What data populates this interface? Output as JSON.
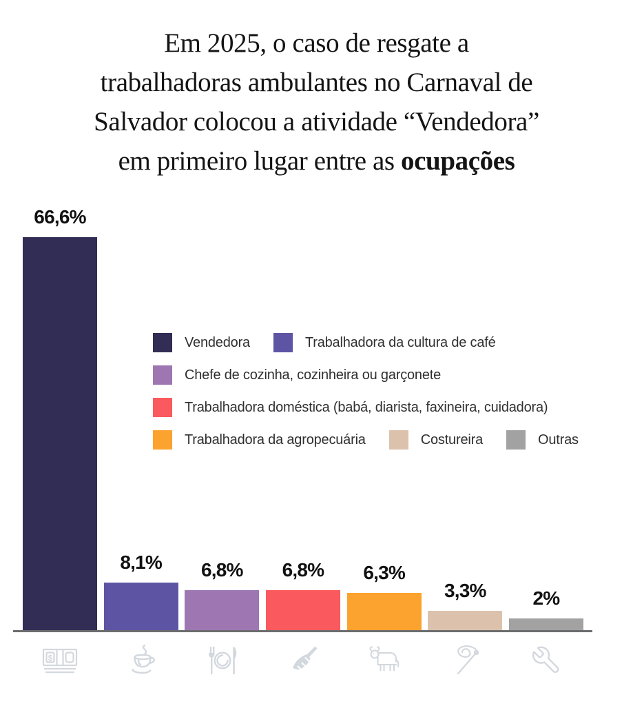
{
  "title": {
    "line1": "Em 2025, o caso de resgate a",
    "line2": "trabalhadoras ambulantes no Carnaval de",
    "line3": "Salvador colocou a atividade “Vendedora”",
    "line4_prefix": "em primeiro lugar entre as ",
    "line4_bold": "ocupações"
  },
  "chart_data": {
    "type": "bar",
    "unit": "%",
    "categories": [
      "Vendedora",
      "Trabalhadora da cultura de café",
      "Chefe de cozinha, cozinheira ou garçonete",
      "Trabalhadora doméstica (babá, diarista, faxineira, cuidadora)",
      "Trabalhadora da agropecuária",
      "Costureira",
      "Outras"
    ],
    "values": [
      66.6,
      8.1,
      6.8,
      6.8,
      6.3,
      3.3,
      2
    ],
    "labels": [
      "66,6%",
      "8,1%",
      "6,8%",
      "6,8%",
      "6,3%",
      "3,3%",
      "2%"
    ],
    "colors": [
      "#312d54",
      "#5d55a4",
      "#9d76b2",
      "#fa5a5e",
      "#fba22f",
      "#dcc2ad",
      "#a2a2a2"
    ],
    "icons": [
      "money-banknotes",
      "coffee-cup",
      "cutlery-plate",
      "broom",
      "cow",
      "needle-thread",
      "wrench"
    ],
    "xlabel": "",
    "ylabel": "",
    "ylim": [
      0,
      70
    ],
    "grid": false,
    "legend_position": "center-right",
    "axis_line_color": "#6b6c6e",
    "icon_color": "#d3d8de"
  },
  "legend": {
    "rows": [
      [
        0,
        1
      ],
      [
        2
      ],
      [
        3
      ],
      [
        4,
        5,
        6
      ]
    ]
  }
}
